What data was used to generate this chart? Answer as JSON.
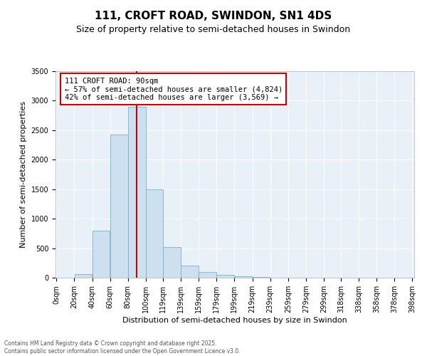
{
  "title": "111, CROFT ROAD, SWINDON, SN1 4DS",
  "subtitle": "Size of property relative to semi-detached houses in Swindon",
  "xlabel": "Distribution of semi-detached houses by size in Swindon",
  "ylabel": "Number of semi-detached properties",
  "bin_labels": [
    "0sqm",
    "20sqm",
    "40sqm",
    "60sqm",
    "80sqm",
    "100sqm",
    "119sqm",
    "139sqm",
    "159sqm",
    "179sqm",
    "199sqm",
    "219sqm",
    "239sqm",
    "259sqm",
    "279sqm",
    "299sqm",
    "318sqm",
    "338sqm",
    "358sqm",
    "378sqm",
    "398sqm"
  ],
  "bin_edges": [
    0,
    20,
    40,
    60,
    80,
    100,
    119,
    139,
    159,
    179,
    199,
    219,
    239,
    259,
    279,
    299,
    318,
    338,
    358,
    378,
    398
  ],
  "bar_heights": [
    0,
    60,
    800,
    2420,
    2900,
    1500,
    520,
    200,
    100,
    50,
    20,
    10,
    5,
    3,
    2,
    1,
    0,
    0,
    0,
    0
  ],
  "bar_color": "#cce0f0",
  "bar_edge_color": "#7aafc8",
  "vline_x": 90,
  "vline_color": "#cc0000",
  "annotation_text": "111 CROFT ROAD: 90sqm\n← 57% of semi-detached houses are smaller (4,824)\n42% of semi-detached houses are larger (3,569) →",
  "annotation_box_color": "#ffffff",
  "annotation_box_edge": "#cc0000",
  "ylim": [
    0,
    3500
  ],
  "yticks": [
    0,
    500,
    1000,
    1500,
    2000,
    2500,
    3000,
    3500
  ],
  "footer_line1": "Contains HM Land Registry data © Crown copyright and database right 2025.",
  "footer_line2": "Contains public sector information licensed under the Open Government Licence v3.0.",
  "bg_color": "#ffffff",
  "plot_bg_color": "#e8f0f8",
  "title_fontsize": 11,
  "subtitle_fontsize": 9,
  "axis_label_fontsize": 8,
  "tick_fontsize": 7,
  "annotation_fontsize": 7.5
}
